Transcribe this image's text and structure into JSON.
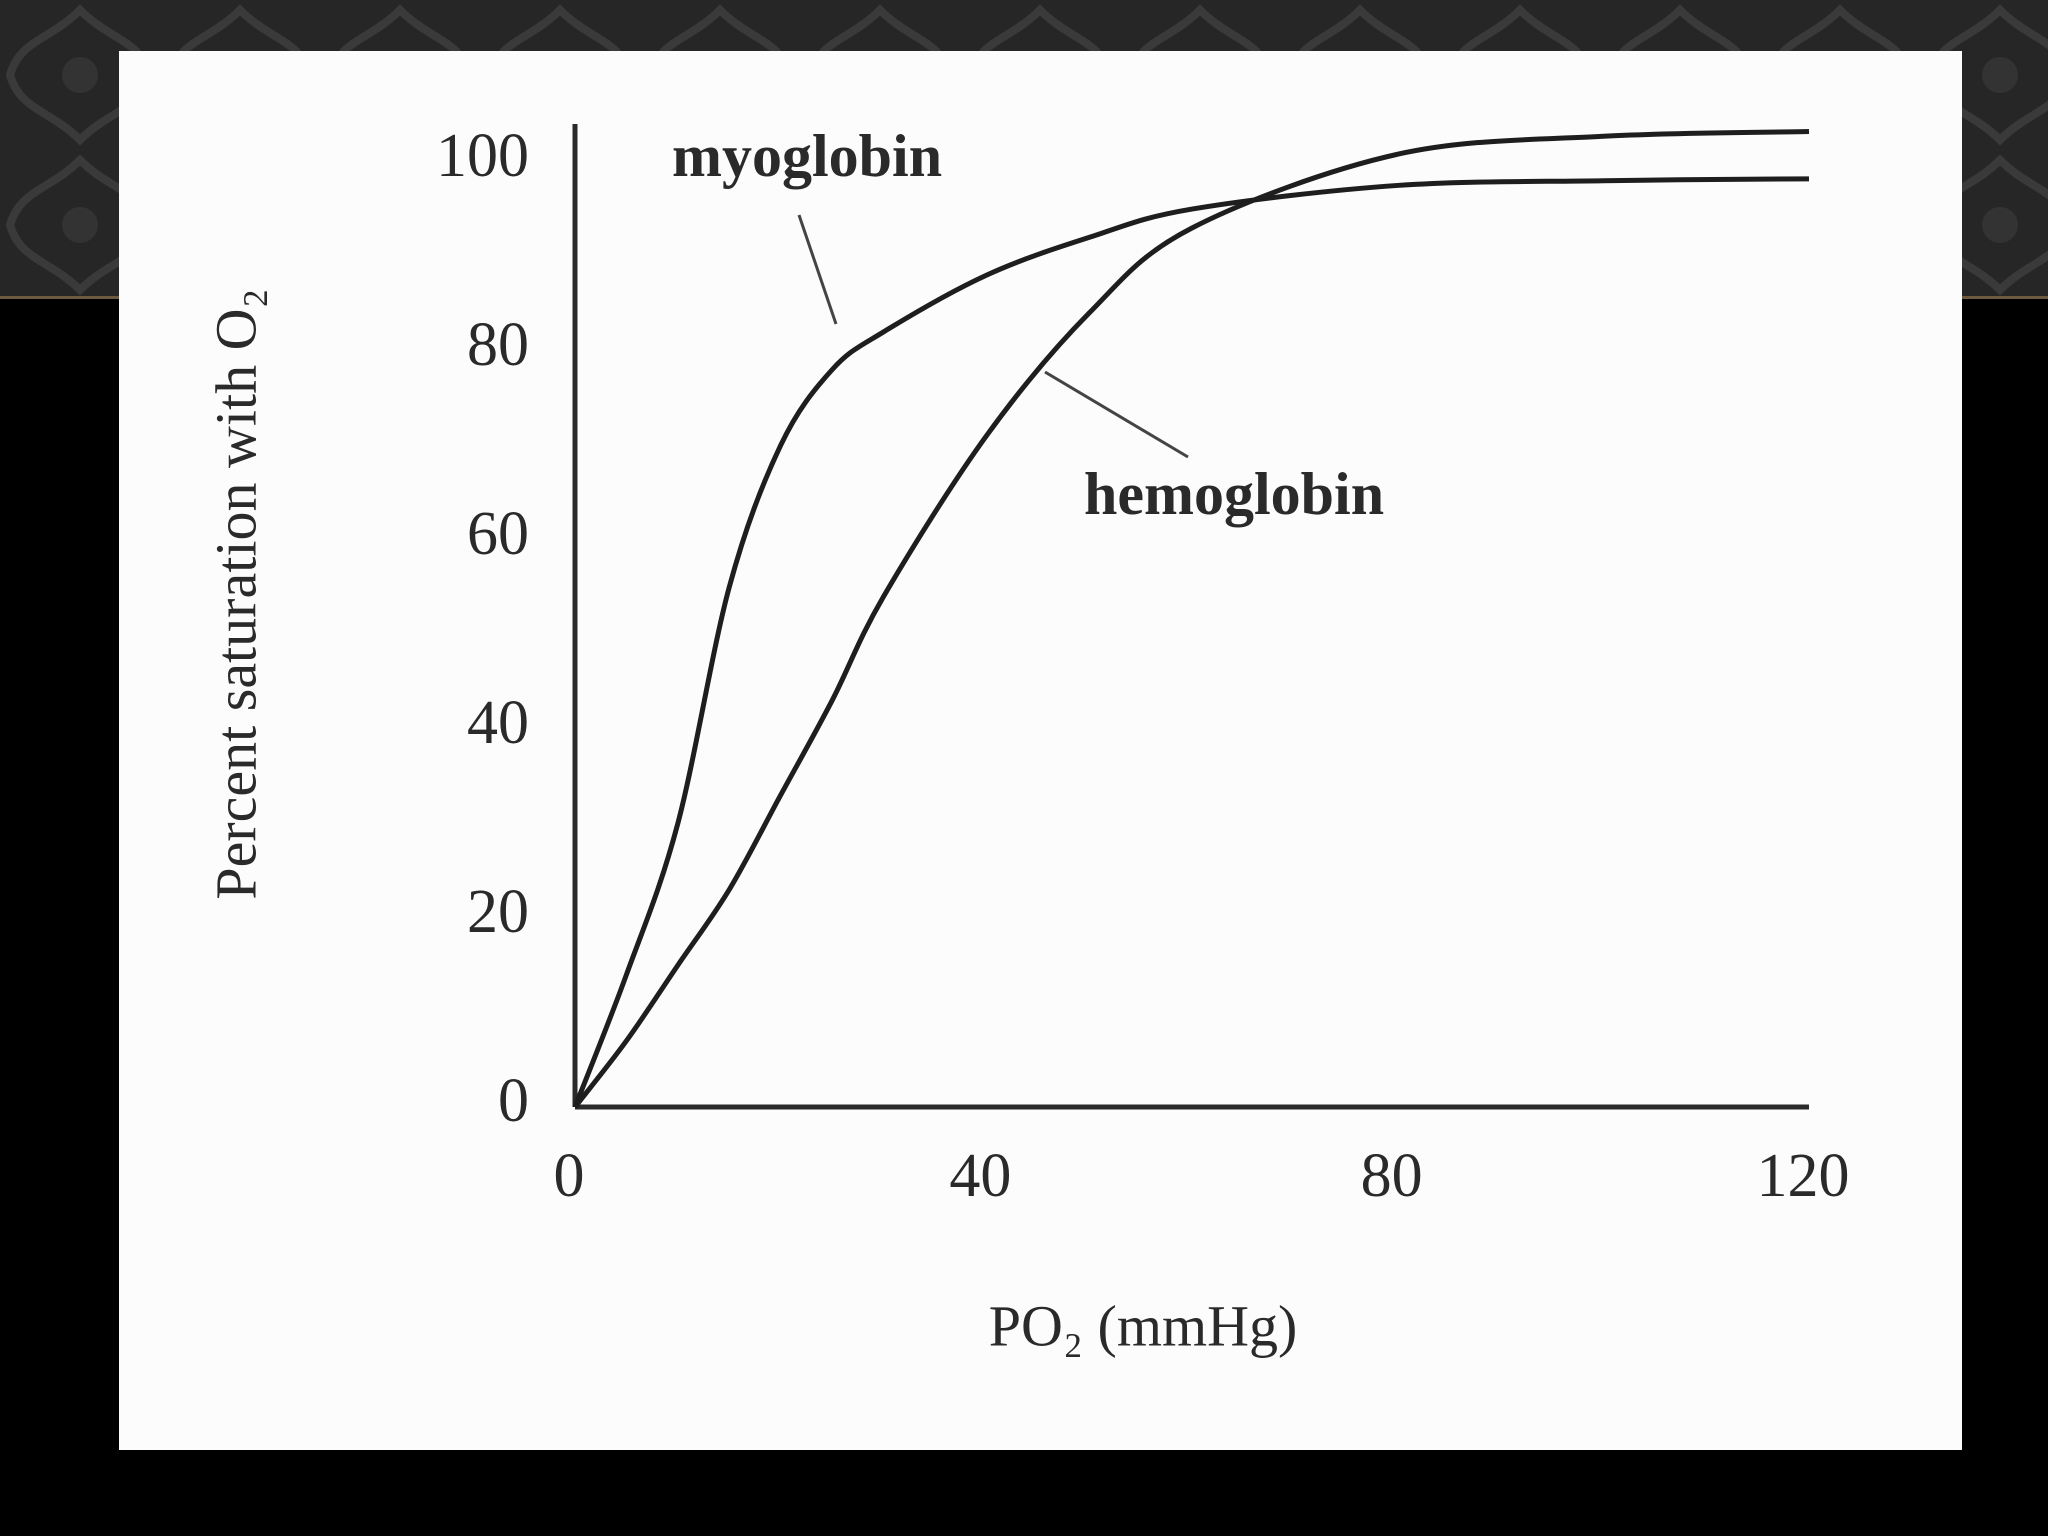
{
  "chart_data": {
    "type": "line",
    "y_label": "Percent saturation with O₂",
    "x_label": "PO₂ (mmHg)",
    "x": [
      0,
      5,
      10,
      15,
      20,
      25,
      30,
      40,
      50,
      60,
      80,
      100,
      120
    ],
    "series": [
      {
        "name": "myoglobin",
        "color": "#1e1e1e",
        "values": [
          0,
          14,
          30,
          55,
          70,
          78,
          82,
          88,
          92,
          95,
          97.5,
          98,
          98.2
        ]
      },
      {
        "name": "hemoglobin",
        "color": "#1e1e1e",
        "values": [
          0,
          7,
          15,
          23,
          33,
          43,
          54,
          71,
          84,
          93,
          100.8,
          102.7,
          103.2
        ]
      }
    ],
    "xlim": [
      0,
      120
    ],
    "xticks": [
      0,
      40,
      80,
      120
    ],
    "ylim": [
      0,
      104
    ],
    "yticks": [
      0,
      20,
      40,
      60,
      80,
      100
    ],
    "grid": false
  }
}
